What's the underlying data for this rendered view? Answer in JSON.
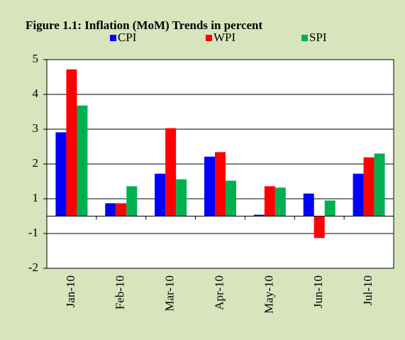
{
  "chart_data": {
    "type": "bar",
    "title": "Figure 1.1: Inflation (MoM) Trends in percent",
    "categories": [
      "Jan-10",
      "Feb-10",
      "Mar-10",
      "Apr-10",
      "May-10",
      "Jun-10",
      "Jul-10"
    ],
    "series": [
      {
        "name": "CPI",
        "color": "#0000ff",
        "values": [
          2.41,
          0.37,
          1.22,
          1.71,
          0.04,
          0.65,
          1.22
        ]
      },
      {
        "name": "WPI",
        "color": "#ff0000",
        "values": [
          4.22,
          0.37,
          2.53,
          1.84,
          0.86,
          -0.63,
          1.69
        ]
      },
      {
        "name": "SPI",
        "color": "#00b050",
        "values": [
          3.18,
          0.86,
          1.06,
          1.02,
          0.82,
          0.45,
          1.8
        ]
      }
    ],
    "ylim": [
      -1.5,
      4.5
    ],
    "yticks": [
      {
        "value": -1.5,
        "label": "-2"
      },
      {
        "value": -0.5,
        "label": "-1"
      },
      {
        "value": 0.5,
        "label": "1"
      },
      {
        "value": 1.5,
        "label": "2"
      },
      {
        "value": 2.5,
        "label": "3"
      },
      {
        "value": 3.5,
        "label": "4"
      },
      {
        "value": 4.5,
        "label": "5"
      }
    ],
    "grid": true
  }
}
